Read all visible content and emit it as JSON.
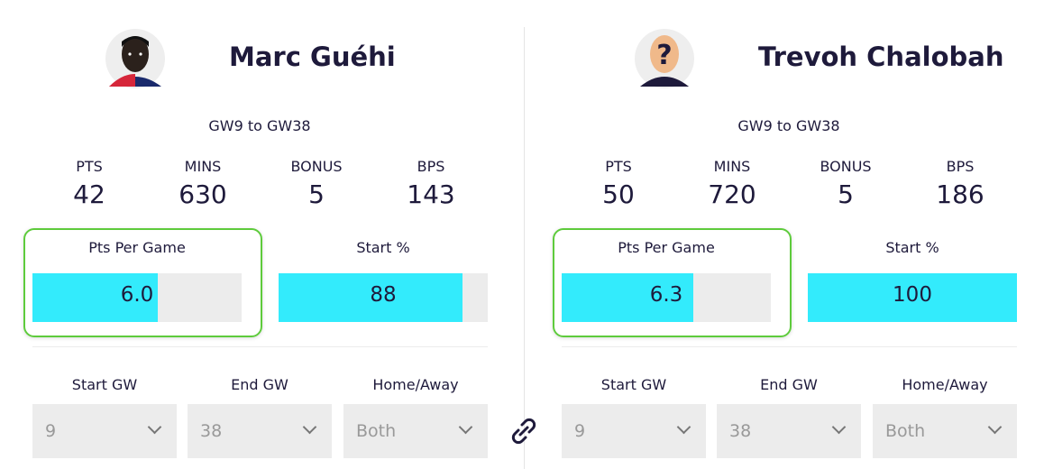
{
  "players": [
    {
      "name": "Marc Guéhi",
      "range": "GW9 to GW38",
      "stats": [
        {
          "label": "PTS",
          "value": 42
        },
        {
          "label": "MINS",
          "value": 630
        },
        {
          "label": "BONUS",
          "value": 5
        },
        {
          "label": "BPS",
          "value": 143
        }
      ],
      "pts_per_game": {
        "title": "Pts Per Game",
        "value": 6,
        "label": "6.0",
        "xlim": [
          0,
          10
        ]
      },
      "start_pct": {
        "title": "Start %",
        "value": 88,
        "xlim": [
          0,
          100
        ]
      },
      "filters": [
        {
          "label": "Start GW",
          "value": "9"
        },
        {
          "label": "End GW",
          "value": "38"
        },
        {
          "label": "Home/Away",
          "value": "Both"
        }
      ]
    },
    {
      "name": "Trevoh Chalobah",
      "range": "GW9 to GW38",
      "stats": [
        {
          "label": "PTS",
          "value": 50
        },
        {
          "label": "MINS",
          "value": 720
        },
        {
          "label": "BONUS",
          "value": 5
        },
        {
          "label": "BPS",
          "value": 186
        }
      ],
      "pts_per_game": {
        "title": "Pts Per Game",
        "value": 6.3,
        "label": "6.3",
        "xlim": [
          0,
          10
        ]
      },
      "start_pct": {
        "title": "Start %",
        "value": 100,
        "xlim": [
          0,
          100
        ]
      },
      "filters": [
        {
          "label": "Start GW",
          "value": "9"
        },
        {
          "label": "End GW",
          "value": "38"
        },
        {
          "label": "Home/Away",
          "value": "Both"
        }
      ]
    }
  ]
}
